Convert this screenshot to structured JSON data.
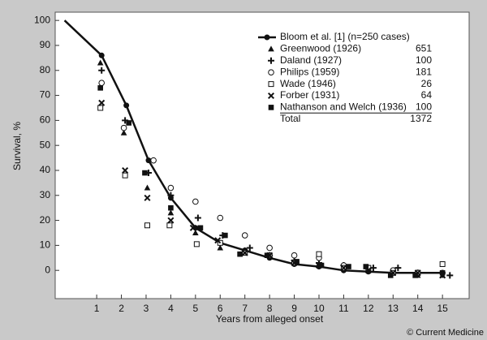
{
  "chart_data": {
    "type": "line",
    "y_label": "Survival, %",
    "x_label": "Years from alleged onset",
    "credit": "© Current Medicine",
    "xlim": [
      -0.68,
      16.08
    ],
    "ylim": [
      -11.3,
      103.3
    ],
    "xticks": [
      1,
      2,
      3,
      4,
      5,
      6,
      7,
      8,
      9,
      10,
      11,
      12,
      13,
      14,
      15
    ],
    "yticks": [
      0,
      10,
      20,
      30,
      40,
      50,
      60,
      70,
      80,
      90,
      100
    ],
    "series": [
      {
        "name": "Bloom et al. [1] (n=250 cases)",
        "marker": "filled-circle",
        "line": true,
        "color": "#111111",
        "x": [
          -0.3,
          1.2,
          2.2,
          3.1,
          4,
          5,
          6,
          7,
          8,
          9,
          10,
          11,
          12,
          13,
          14,
          15
        ],
        "values": [
          100,
          86,
          66,
          44,
          29,
          17,
          11,
          8,
          5,
          2.5,
          1.5,
          0,
          -0.5,
          -1,
          -1,
          -1
        ]
      },
      {
        "name": "Greenwood (1926)",
        "count": 651,
        "marker": "triangle",
        "color": "#111111",
        "x": [
          1.15,
          2.1,
          3.05,
          4,
          5,
          6,
          7,
          8,
          9,
          10,
          11,
          12,
          13,
          14,
          15
        ],
        "values": [
          83,
          55,
          33,
          23,
          15,
          9,
          8,
          6,
          3,
          2,
          1,
          0,
          -1,
          -2,
          -2
        ]
      },
      {
        "name": "Daland (1927)",
        "count": 100,
        "marker": "plus",
        "color": "#111111",
        "x": [
          1.2,
          2.15,
          3.1,
          4,
          5.1,
          6.1,
          7.2,
          8,
          9,
          10,
          11,
          12.2,
          13.2,
          14,
          15.3
        ],
        "values": [
          80,
          60,
          39,
          30,
          21,
          14,
          9,
          6,
          4,
          3,
          2,
          1,
          1,
          -1,
          -2
        ]
      },
      {
        "name": "Philips (1959)",
        "count": 181,
        "marker": "open-circle",
        "color": "#111111",
        "x": [
          1.2,
          2.1,
          3.3,
          4,
          5,
          6,
          7,
          8,
          9,
          10,
          11,
          12,
          13,
          14,
          15
        ],
        "values": [
          75,
          57,
          44,
          33,
          27.5,
          21,
          14,
          9,
          6,
          5,
          2,
          1,
          0,
          -1,
          -1
        ]
      },
      {
        "name": "Wade (1946)",
        "count": 26,
        "marker": "open-square",
        "color": "#111111",
        "x": [
          1.15,
          2.15,
          3.05,
          3.95,
          5.05,
          6,
          7,
          8,
          9,
          10,
          11,
          12,
          13,
          14,
          15
        ],
        "values": [
          65,
          38,
          18,
          18,
          10.5,
          11,
          7,
          6,
          3,
          6.5,
          1,
          1,
          -1,
          -1,
          2.5
        ]
      },
      {
        "name": "Forber (1931)",
        "count": 64,
        "marker": "cross",
        "color": "#111111",
        "x": [
          1.2,
          2.15,
          3.05,
          4,
          4.9,
          5.9,
          7,
          8,
          9,
          10,
          11,
          12,
          13,
          14,
          15
        ],
        "values": [
          67,
          40,
          29,
          20,
          17,
          12,
          7,
          6,
          3,
          2,
          1,
          0,
          -1,
          -1,
          -2
        ]
      },
      {
        "name": "Nathanson and Welch (1936)",
        "count": 100,
        "marker": "filled-square",
        "color": "#111111",
        "x": [
          1.15,
          2.3,
          2.95,
          4,
          5.2,
          6.2,
          6.8,
          7.9,
          9.1,
          10.1,
          11.2,
          11.9,
          12.9,
          13.9,
          15
        ],
        "values": [
          73,
          59,
          39,
          25,
          17,
          14,
          6.5,
          6,
          3.5,
          2,
          1.5,
          1.5,
          -2,
          -2,
          -1
        ]
      }
    ],
    "total_label": "Total",
    "total": 1372
  }
}
